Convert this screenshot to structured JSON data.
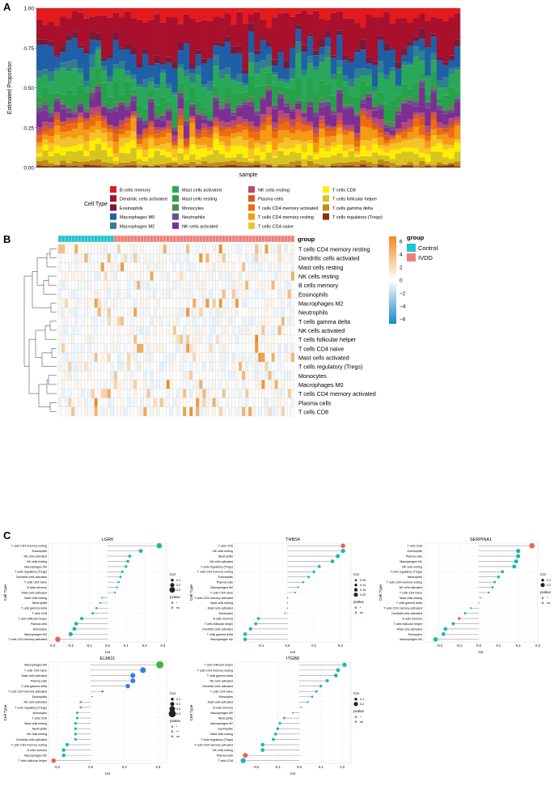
{
  "panels": {
    "a": "A",
    "b": "B",
    "c": "C"
  },
  "colors": {
    "cell_types": {
      "B cells memory": "#e41a1c",
      "Dendritic cells activated": "#a8102c",
      "Eosinophils": "#7a1a3a",
      "Macrophages M0": "#1f5fa8",
      "Macrophages M2": "#2f7f8f",
      "Mast cells activated": "#2aa85a",
      "Mast cells resting": "#25a24a",
      "Monocytes": "#4f8a4f",
      "Neutrophils": "#6a4f8a",
      "NK cells activated": "#7d2e92",
      "NK cells resting": "#b6497a",
      "Plasma cells": "#d85a1e",
      "T cells CD4 memory activated": "#ef6a12",
      "T cells CD4 memory resting": "#f59a14",
      "T cells CD4 naive": "#f6c22a",
      "T cells CD8": "#ffee00",
      "T cells follicular helper": "#d7c421",
      "T cells gamma delta": "#c28a16",
      "T cells regulatory (Tregs)": "#8b3010"
    },
    "control": "#20c4cb",
    "ivdd": "#f08078",
    "heat_high": "#f08a1e",
    "heat_low": "#1a88c8",
    "sig": "#f25c54",
    "ns": "#1fb6b0",
    "ns_blue": "#3a7fe0",
    "sig_green": "#3cb83c"
  },
  "chart_data": [
    {
      "id": "A",
      "type": "bar",
      "stacked": true,
      "title": "",
      "xlabel": "sample",
      "ylabel": "Estimated Proportion",
      "ylim": [
        0,
        1
      ],
      "yticks": [
        "0.00",
        "0.25",
        "0.50",
        "0.75",
        "1.00"
      ],
      "n_samples": 72,
      "legend_title": "Cell Type",
      "categories": [
        "B cells memory",
        "Dendritic cells activated",
        "Eosinophils",
        "Macrophages M0",
        "Macrophages M2",
        "Mast cells activated",
        "Mast cells resting",
        "Monocytes",
        "Neutrophils",
        "NK cells activated",
        "NK cells resting",
        "Plasma cells",
        "T cells CD4 memory activated",
        "T cells CD4 memory resting",
        "T cells CD4 naive",
        "T cells CD8",
        "T cells follicular helper",
        "T cells gamma delta",
        "T cells regulatory (Tregs)"
      ],
      "mean_values": [
        0.06,
        0.19,
        0.03,
        0.1,
        0.04,
        0.1,
        0.08,
        0.02,
        0.02,
        0.07,
        0.03,
        0.02,
        0.03,
        0.05,
        0.04,
        0.04,
        0.05,
        0.02,
        0.01
      ]
    },
    {
      "id": "B",
      "type": "heatmap",
      "annotation_title": "group",
      "groups": [
        "Control",
        "IVDD"
      ],
      "n_control": 17,
      "n_ivdd": 55,
      "legend_title": "group",
      "color_range": [
        -6,
        6
      ],
      "colorbar_ticks": [
        "6",
        "4",
        "2",
        "0",
        "−2",
        "−4",
        "−6"
      ],
      "rows": [
        "T cells CD4 memory resting",
        "Dendritic cells activated",
        "Mast cells resting",
        "NK cells resting",
        "B cells memory",
        "Eosinophils",
        "Macrophages M2",
        "Neutrophils",
        "T cells gamma delta",
        "NK cells activated",
        "T cells follicular helper",
        "T cells CD4 naive",
        "Mast cells activated",
        "T cells regulatory (Tregs)",
        "Monocytes",
        "Macrophages M0",
        "T cells CD4 memory activated",
        "Plasma cells",
        "T cells CD8"
      ]
    },
    {
      "id": "LGR6",
      "type": "scatter",
      "title": "LGR6",
      "xlabel": "cor",
      "ylabel": "Cell Type",
      "xlim": [
        -0.32,
        0.32
      ],
      "xticks": [
        "-0.3",
        "-0.2",
        "-0.1",
        "0.0",
        "0.1",
        "0.2",
        "0.3"
      ],
      "labels": [
        "T cells CD4 memory resting",
        "Eosinophils",
        "NK cells activated",
        "NK cells resting",
        "Macrophages M0",
        "T cells regulatory (Tregs)",
        "Dendritic cells activated",
        "T cells CD4 naive",
        "B cells memory",
        "Mast cells activated",
        "Mast cells resting",
        "Neutrophils",
        "T cells gamma delta",
        "T cells CD8",
        "T cells follicular helper",
        "Plasma cells",
        "Monocytes",
        "Macrophages M2",
        "T cells CD4 memory activated"
      ],
      "values": [
        0.28,
        0.18,
        0.12,
        0.11,
        0.1,
        0.08,
        0.07,
        0.06,
        0.05,
        0.04,
        -0.03,
        -0.04,
        -0.06,
        -0.08,
        -0.14,
        -0.17,
        -0.18,
        -0.2,
        -0.27
      ],
      "pvalue": [
        "ns",
        "ns",
        "ns",
        "ns",
        "ns",
        "ns",
        "ns",
        "ns",
        "ns",
        "ns",
        "ns",
        "ns",
        "ns",
        "ns",
        "ns",
        "ns",
        "ns",
        "ns",
        "*"
      ],
      "legend": {
        "cor_title": "Cor",
        "cor_labels": [
          "0.1",
          "0.2",
          "0.3"
        ],
        "p_title": "pvalue",
        "p_labels": [
          "*",
          "ns"
        ]
      }
    },
    {
      "id": "THBS4",
      "type": "scatter",
      "title": "THBS4",
      "xlabel": "cor",
      "ylabel": "Cell Type",
      "xlim": [
        -0.2,
        0.24
      ],
      "xticks": [
        "-0.1",
        "0.0",
        "0.1",
        "0.2"
      ],
      "labels": [
        "T cells CD8",
        "NK cells resting",
        "Neutrophils",
        "NK cells activated",
        "T cells regulatory (Tregs)",
        "T cells CD4 memory resting",
        "Eosinophils",
        "Plasma cells",
        "Macrophages M0",
        "T cells CD4 naive",
        "T cells CD4 memory activated",
        "Mast cells resting",
        "Mast cells activated",
        "Monocytes",
        "B cells memory",
        "T cells follicular helper",
        "Dendritic cells activated",
        "T cells gamma delta",
        "Macrophages M2"
      ],
      "values": [
        0.21,
        0.21,
        0.19,
        0.17,
        0.12,
        0.1,
        0.08,
        0.06,
        0.04,
        0.03,
        0.0,
        0.0,
        0.0,
        -0.01,
        -0.11,
        -0.12,
        -0.14,
        -0.16,
        -0.16
      ],
      "pvalue": [
        "*",
        "ns",
        "ns",
        "ns",
        "ns",
        "ns",
        "ns",
        "ns",
        "ns",
        "ns",
        "ns",
        "ns",
        "ns",
        "ns",
        "ns",
        "ns",
        "ns",
        "ns",
        "ns"
      ],
      "legend": {
        "cor_title": "Cor",
        "cor_labels": [
          "0.05",
          "0.10",
          "0.15",
          "0.20"
        ],
        "p_title": "pvalue",
        "p_labels": [
          "*",
          "ns"
        ]
      }
    },
    {
      "id": "SERPINA1",
      "type": "scatter",
      "title": "SERPINA1",
      "xlabel": "cor",
      "ylabel": "Cell Type",
      "xlim": [
        -0.28,
        0.3
      ],
      "xticks": [
        "-0.2",
        "-0.1",
        "0.0",
        "0.1",
        "0.2",
        "0.3"
      ],
      "labels": [
        "T cells CD8",
        "Eosinophils",
        "Plasma cells",
        "Macrophages M2",
        "NK cells resting",
        "T cells regulatory (Tregs)",
        "Neutrophils",
        "T cells CD4 memory resting",
        "NK cells activated",
        "T cells CD4 naive",
        "Mast cells resting",
        "T cells gamma delta",
        "T cells CD4 memory activated",
        "Dendritic cells activated",
        "B cells memory",
        "T cells follicular helper",
        "Mast cells activated",
        "Monocytes",
        "Macrophages M0"
      ],
      "values": [
        0.27,
        0.2,
        0.2,
        0.19,
        0.18,
        0.12,
        0.1,
        0.08,
        0.07,
        0.05,
        0.01,
        0.0,
        -0.04,
        -0.07,
        -0.1,
        -0.13,
        -0.17,
        -0.18,
        -0.22
      ],
      "pvalue": [
        "*",
        "ns",
        "ns",
        "ns",
        "ns",
        "ns",
        "ns",
        "ns",
        "ns",
        "ns",
        "ns",
        "ns",
        "ns",
        "ns",
        "*",
        "ns",
        "ns",
        "ns",
        "ns"
      ],
      "legend": {
        "cor_title": "Cor",
        "cor_labels": [
          "0.1",
          "0.2"
        ],
        "p_title": "pvalue",
        "p_labels": [
          "*",
          "ns"
        ]
      }
    },
    {
      "id": "ELMO1",
      "type": "scatter",
      "title": "ELMO1",
      "xlabel": "cor",
      "ylabel": "Cell Type",
      "xlim": [
        -0.25,
        0.45
      ],
      "xticks": [
        "-0.2",
        "0.0",
        "0.2",
        "0.4"
      ],
      "labels": [
        "Macrophages M0",
        "T cells CD4 naive",
        "Mast cells activated",
        "Plasma cells",
        "T cells gamma delta",
        "T cells CD4 memory activated",
        "Eosinophils",
        "NK cells activated",
        "T cells regulatory (Tregs)",
        "Monocytes",
        "T cells CD8",
        "Mast cells resting",
        "Neutrophils",
        "NK cells resting",
        "Dendritic cells activated",
        "T cells CD4 memory resting",
        "B cells memory",
        "Macrophages M2",
        "T cells follicular helper"
      ],
      "values": [
        0.41,
        0.31,
        0.25,
        0.25,
        0.22,
        0.07,
        0.01,
        -0.06,
        -0.06,
        -0.08,
        -0.08,
        -0.09,
        -0.09,
        -0.09,
        -0.09,
        -0.14,
        -0.16,
        -0.16,
        -0.22
      ],
      "pvalue": [
        "**",
        "*",
        "*",
        "*",
        "*",
        "ns",
        "ns",
        "ns",
        "ns",
        "ns",
        "ns",
        "ns",
        "ns",
        "ns",
        "ns",
        "ns",
        "ns",
        "ns",
        "*"
      ],
      "legend": {
        "cor_title": "Cor",
        "cor_labels": [
          "0.1",
          "0.2",
          "0.3",
          "0.4"
        ],
        "p_title": "pvalue",
        "p_labels": [
          "*",
          "**",
          "ns"
        ]
      }
    },
    {
      "id": "ITGB8",
      "type": "scatter",
      "title": "ITGB8",
      "xlabel": "cor",
      "ylabel": "Cell Type",
      "xlim": [
        -0.3,
        0.24
      ],
      "xticks": [
        "-0.2",
        "-0.1",
        "0.0",
        "0.1",
        "0.2"
      ],
      "labels": [
        "T cells follicular helper",
        "T cells CD4 memory resting",
        "T cells gamma delta",
        "NK cells activated",
        "Dendritic cells activated",
        "T cells CD4 naive",
        "Monocytes",
        "Mast cells activated",
        "B cells memory",
        "Macrophages M0",
        "Neutrophils",
        "Macrophages M2",
        "Eosinophils",
        "Mast cells resting",
        "T cells regulatory (Tregs)",
        "T cells CD4 memory activated",
        "NK cells resting",
        "Plasma cells",
        "T cells CD8"
      ],
      "values": [
        0.21,
        0.18,
        0.17,
        0.13,
        0.1,
        0.08,
        0.06,
        0.04,
        0.01,
        -0.03,
        -0.07,
        -0.09,
        -0.1,
        -0.11,
        -0.12,
        -0.17,
        -0.17,
        -0.25,
        -0.26
      ],
      "pvalue": [
        "ns",
        "ns",
        "ns",
        "ns",
        "ns",
        "ns",
        "ns",
        "ns",
        "ns",
        "ns",
        "ns",
        "ns",
        "ns",
        "ns",
        "ns",
        "ns",
        "ns",
        "*",
        "ns"
      ],
      "legend": {
        "cor_title": "Cor",
        "cor_labels": [
          "0.1",
          "0.2"
        ],
        "p_title": "pvalue",
        "p_labels": [
          "*",
          "ns"
        ]
      }
    }
  ]
}
